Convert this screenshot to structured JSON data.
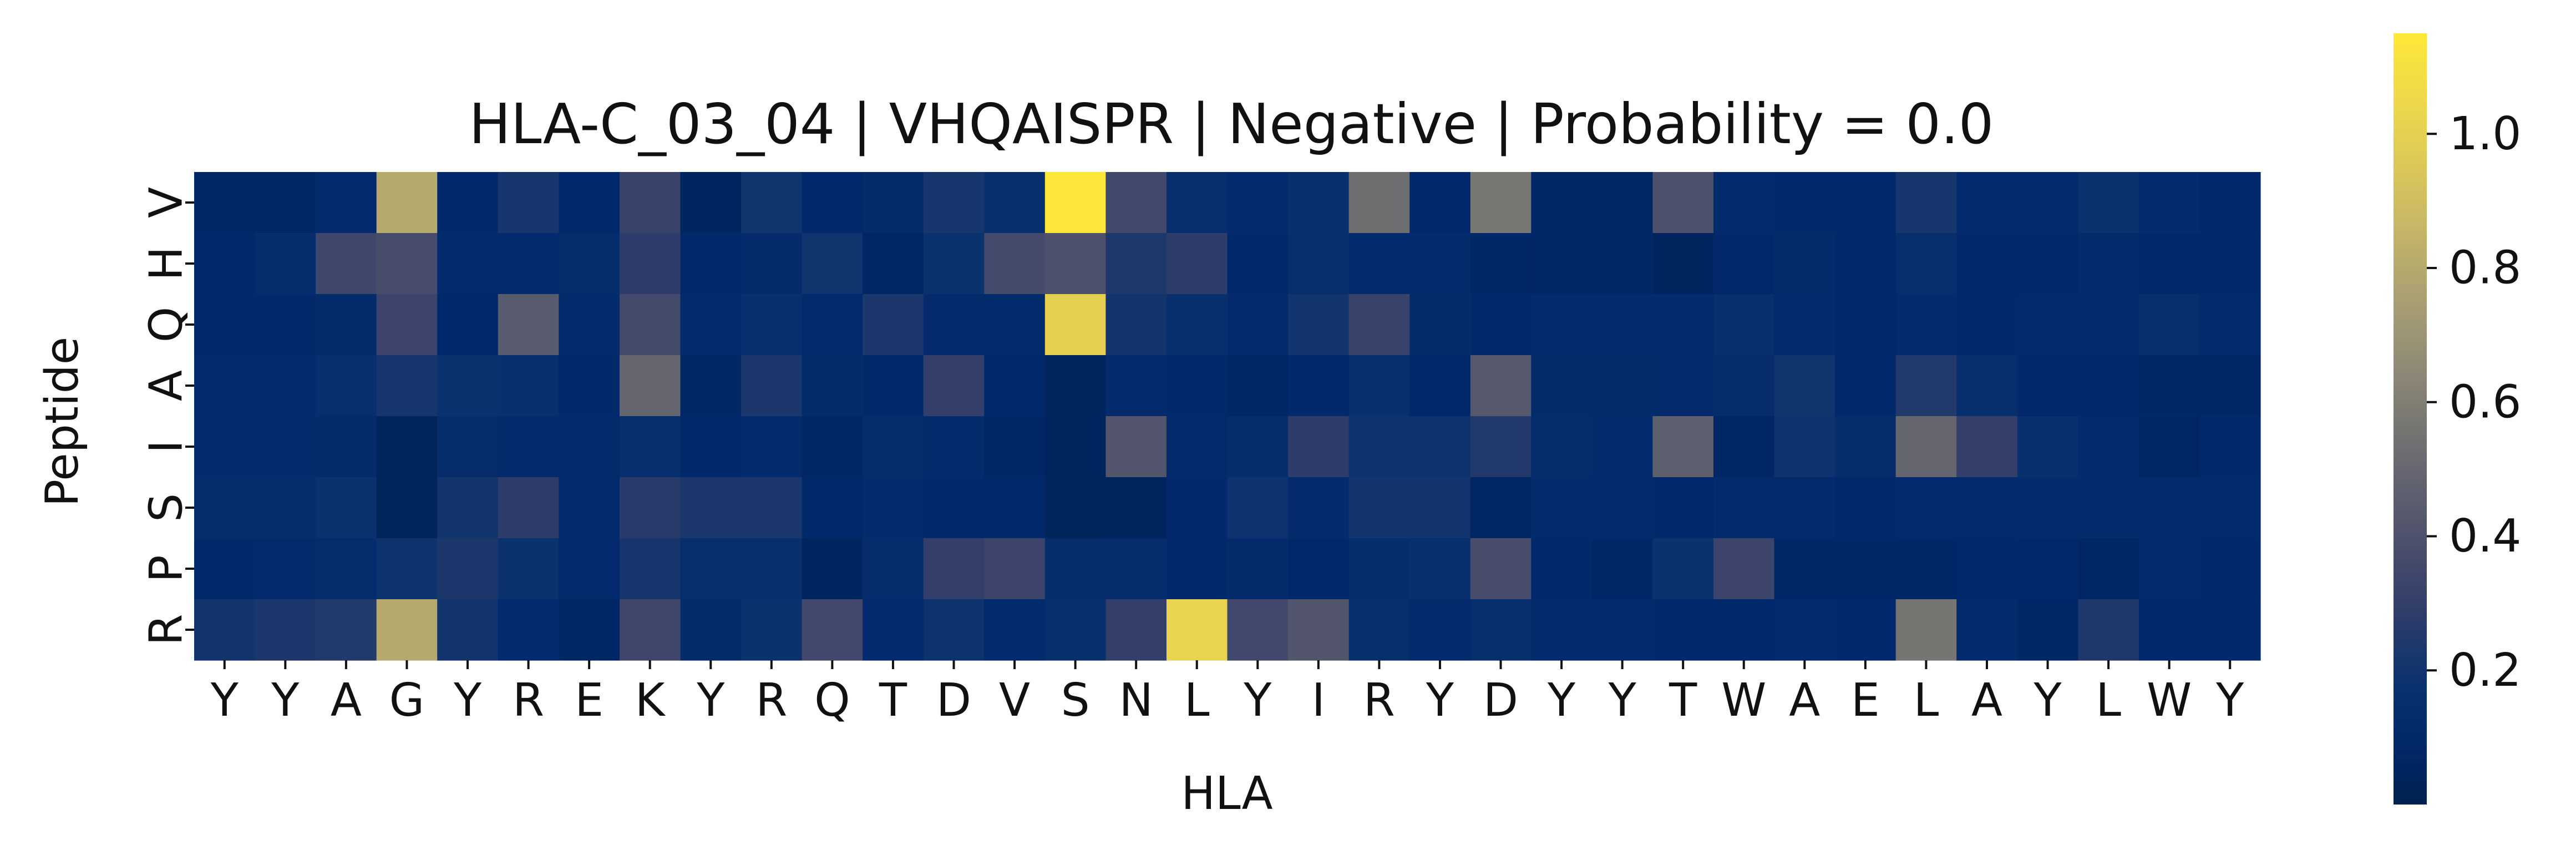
{
  "chart_data": {
    "type": "heatmap",
    "title": "HLA-C_03_04 | VHQAISPR | Negative | Probability = 0.0",
    "xlabel": "HLA",
    "ylabel": "Peptide",
    "x_labels": [
      "Y",
      "Y",
      "A",
      "G",
      "Y",
      "R",
      "E",
      "K",
      "Y",
      "R",
      "Q",
      "T",
      "D",
      "V",
      "S",
      "N",
      "L",
      "Y",
      "I",
      "R",
      "Y",
      "D",
      "Y",
      "Y",
      "T",
      "W",
      "A",
      "E",
      "L",
      "A",
      "Y",
      "L",
      "W",
      "Y"
    ],
    "y_labels": [
      "V",
      "H",
      "Q",
      "A",
      "I",
      "S",
      "P",
      "R"
    ],
    "values": [
      [
        0.08,
        0.08,
        0.11,
        0.8,
        0.1,
        0.22,
        0.1,
        0.32,
        0.06,
        0.2,
        0.1,
        0.13,
        0.22,
        0.17,
        1.14,
        0.35,
        0.16,
        0.11,
        0.17,
        0.53,
        0.09,
        0.57,
        0.07,
        0.07,
        0.4,
        0.11,
        0.1,
        0.1,
        0.22,
        0.12,
        0.11,
        0.18,
        0.12,
        0.1
      ],
      [
        0.1,
        0.15,
        0.34,
        0.37,
        0.12,
        0.12,
        0.14,
        0.28,
        0.1,
        0.13,
        0.2,
        0.07,
        0.18,
        0.36,
        0.4,
        0.24,
        0.28,
        0.1,
        0.16,
        0.12,
        0.12,
        0.08,
        0.08,
        0.08,
        0.05,
        0.09,
        0.13,
        0.1,
        0.16,
        0.1,
        0.09,
        0.12,
        0.09,
        0.1
      ],
      [
        0.1,
        0.1,
        0.13,
        0.33,
        0.1,
        0.44,
        0.11,
        0.36,
        0.11,
        0.17,
        0.11,
        0.23,
        0.12,
        0.11,
        1.0,
        0.21,
        0.17,
        0.12,
        0.21,
        0.32,
        0.13,
        0.1,
        0.12,
        0.12,
        0.12,
        0.17,
        0.11,
        0.09,
        0.12,
        0.1,
        0.11,
        0.12,
        0.16,
        0.11
      ],
      [
        0.11,
        0.11,
        0.16,
        0.22,
        0.18,
        0.17,
        0.1,
        0.49,
        0.08,
        0.23,
        0.13,
        0.1,
        0.3,
        0.09,
        0.05,
        0.12,
        0.1,
        0.08,
        0.1,
        0.16,
        0.09,
        0.43,
        0.13,
        0.13,
        0.11,
        0.14,
        0.2,
        0.1,
        0.25,
        0.16,
        0.1,
        0.1,
        0.08,
        0.07
      ],
      [
        0.12,
        0.12,
        0.13,
        0.04,
        0.15,
        0.11,
        0.11,
        0.16,
        0.1,
        0.11,
        0.08,
        0.15,
        0.12,
        0.07,
        0.05,
        0.42,
        0.11,
        0.14,
        0.28,
        0.19,
        0.19,
        0.25,
        0.14,
        0.12,
        0.46,
        0.07,
        0.19,
        0.14,
        0.49,
        0.3,
        0.17,
        0.12,
        0.07,
        0.1
      ],
      [
        0.14,
        0.15,
        0.18,
        0.04,
        0.21,
        0.28,
        0.11,
        0.27,
        0.23,
        0.23,
        0.1,
        0.12,
        0.1,
        0.09,
        0.04,
        0.05,
        0.1,
        0.19,
        0.12,
        0.21,
        0.21,
        0.07,
        0.12,
        0.11,
        0.1,
        0.11,
        0.11,
        0.09,
        0.11,
        0.12,
        0.12,
        0.12,
        0.12,
        0.12
      ],
      [
        0.1,
        0.11,
        0.14,
        0.19,
        0.23,
        0.18,
        0.11,
        0.22,
        0.16,
        0.16,
        0.06,
        0.14,
        0.3,
        0.33,
        0.15,
        0.15,
        0.1,
        0.13,
        0.09,
        0.15,
        0.17,
        0.37,
        0.1,
        0.08,
        0.18,
        0.33,
        0.08,
        0.08,
        0.08,
        0.1,
        0.09,
        0.07,
        0.11,
        0.1
      ],
      [
        0.21,
        0.23,
        0.25,
        0.8,
        0.21,
        0.11,
        0.07,
        0.34,
        0.13,
        0.18,
        0.35,
        0.11,
        0.19,
        0.11,
        0.16,
        0.3,
        1.02,
        0.35,
        0.42,
        0.16,
        0.11,
        0.16,
        0.11,
        0.11,
        0.1,
        0.1,
        0.11,
        0.1,
        0.56,
        0.12,
        0.08,
        0.24,
        0.1,
        0.1
      ]
    ],
    "colorbar": {
      "cmap": "cividis",
      "range": [
        0.0,
        1.15
      ],
      "ticks": [
        "0.2",
        "0.4",
        "0.6",
        "0.8",
        "1.0"
      ],
      "tick_values": [
        0.2,
        0.4,
        0.6,
        0.8,
        1.0
      ]
    }
  }
}
